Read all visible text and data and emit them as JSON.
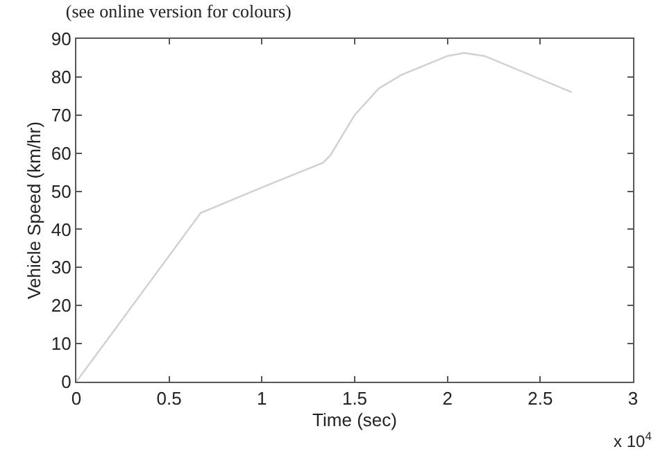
{
  "chart_data": {
    "type": "line",
    "title": "(see online version for colours)",
    "xlabel": "Time (sec)",
    "ylabel": "Vehicle Speed (km/hr)",
    "annotations": [
      "x 10$^{4}$"
    ],
    "x": [
      0,
      0.67,
      1.0,
      1.33,
      1.37,
      1.5,
      1.63,
      1.75,
      2.0,
      2.09,
      2.2,
      2.67
    ],
    "series": [
      {
        "color": "#d0d0d0",
        "values": [
          0,
          44.3,
          51,
          57.5,
          59.5,
          70,
          77,
          80.5,
          85.5,
          86.3,
          85.5,
          76
        ]
      }
    ],
    "xlim": [
      0,
      3
    ],
    "xticks": [
      0,
      0.5,
      1,
      1.5,
      2,
      2.5,
      3
    ],
    "ylim": [
      0,
      90
    ],
    "yticks": [
      0,
      10,
      20,
      30,
      40,
      50,
      60,
      70,
      80,
      90
    ],
    "marker": "none",
    "line_style": "solid"
  }
}
